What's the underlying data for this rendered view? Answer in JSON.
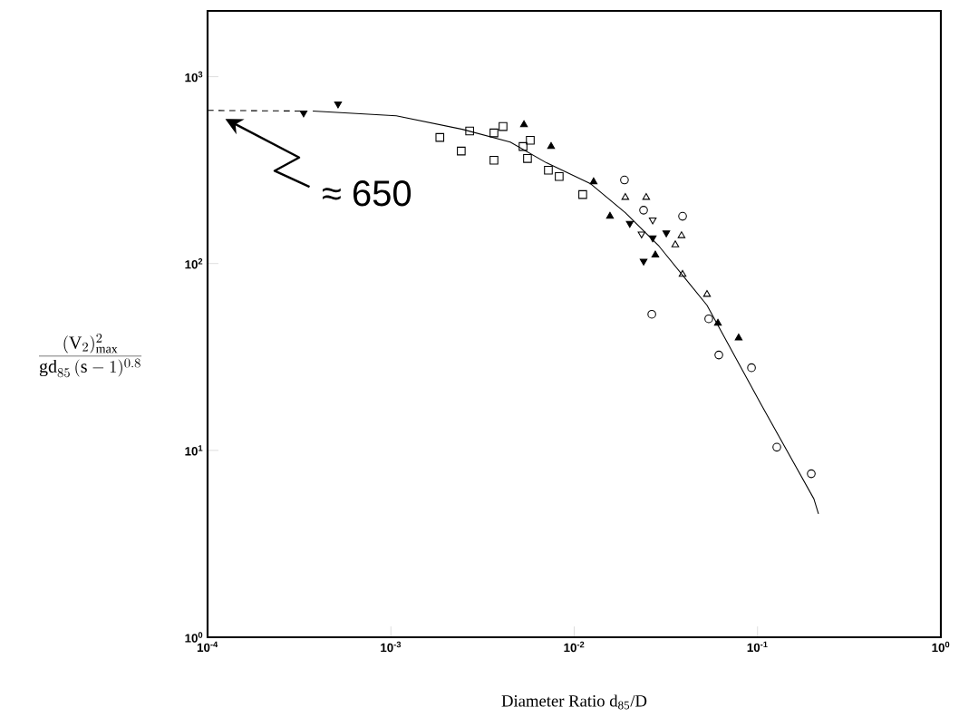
{
  "chart_data": {
    "type": "scatter",
    "log": "xy",
    "xlabel": "Diameter Ratio d$_{85}$/D",
    "ylabel": "\\frac{(\\mathrm{V}_{2})^{2}_{\\mathrm{max}}}{\\mathrm{gd}_{85}\\,(\\mathrm{s}-1)^{0.8}}",
    "xlim": [
      0.0001,
      1
    ],
    "ylim": [
      1,
      2250
    ],
    "xticks": [
      {
        "value": 0.0001,
        "label": "10$^{-4}$"
      },
      {
        "value": 0.001,
        "label": "10$^{-3}$"
      },
      {
        "value": 0.01,
        "label": "10$^{-2}$"
      },
      {
        "value": 0.1,
        "label": "10$^{-1}$"
      },
      {
        "value": 1,
        "label": "10$^{0}$"
      }
    ],
    "yticks": [
      {
        "value": 1,
        "label": "10$^{0}$"
      },
      {
        "value": 10,
        "label": "10$^{1}$"
      },
      {
        "value": 100,
        "label": "10$^{2}$"
      },
      {
        "value": 1000,
        "label": "10$^{3}$"
      }
    ],
    "annotations": [
      "≈ 650"
    ],
    "series": [
      {
        "type": "scatter",
        "marker": "triangle-down",
        "color": "#000000",
        "x": [
          0.000334,
          0.000515,
          0.0201,
          0.0268,
          0.0239,
          0.0318
        ],
        "values": [
          640,
          714,
          164,
          137,
          103,
          146
        ]
      },
      {
        "type": "scatter",
        "marker": "triangle-down-open",
        "color": "#000000",
        "x": [
          0.0268,
          0.0233
        ],
        "values": [
          171,
          144
        ]
      },
      {
        "type": "scatter",
        "marker": "triangle",
        "color": "#000000",
        "x": [
          0.00532,
          0.00748,
          0.01276,
          0.01567,
          0.0277,
          0.0608,
          0.0789
        ],
        "values": [
          553,
          423,
          274,
          179,
          111,
          47.9,
          40.0
        ]
      },
      {
        "type": "scatter",
        "marker": "triangle-open",
        "color": "#000000",
        "x": [
          0.019,
          0.0247,
          0.0385,
          0.0356,
          0.039,
          0.053
        ],
        "values": [
          226,
          226,
          141,
          126,
          87.5,
          68.4
        ]
      },
      {
        "type": "scatter",
        "marker": "circle-open",
        "color": "#000000",
        "x": [
          0.0188,
          0.0239,
          0.039,
          0.0265,
          0.0542,
          0.0615,
          0.0927,
          0.1274,
          0.1964
        ],
        "values": [
          280,
          193,
          179,
          53.5,
          50.6,
          32.4,
          27.7,
          10.4,
          7.5
        ]
      },
      {
        "type": "scatter",
        "marker": "square-open",
        "color": "#000000",
        "x": [
          0.00185,
          0.00269,
          0.00242,
          0.00365,
          0.00365,
          0.00409,
          0.00526,
          0.00576,
          0.00556,
          0.00723,
          0.00828,
          0.01113
        ],
        "values": [
          473,
          512,
          400,
          500,
          357,
          541,
          423,
          457,
          365,
          316,
          292,
          234
        ]
      },
      {
        "type": "line",
        "marker": "none",
        "line_style": "dashed",
        "color": "#000000",
        "x": [
          0.0001,
          0.00032
        ],
        "values": [
          660,
          655
        ]
      },
      {
        "type": "line",
        "marker": "none",
        "line_style": "solid",
        "color": "#000000",
        "x": [
          0.000375,
          0.00107,
          0.00245,
          0.00448,
          0.00706,
          0.0123,
          0.019,
          0.029,
          0.053,
          0.105,
          0.203,
          0.215
        ],
        "values": [
          655,
          618,
          523,
          447,
          346,
          267,
          187,
          124,
          59.8,
          17.5,
          5.5,
          4.57
        ]
      }
    ]
  }
}
